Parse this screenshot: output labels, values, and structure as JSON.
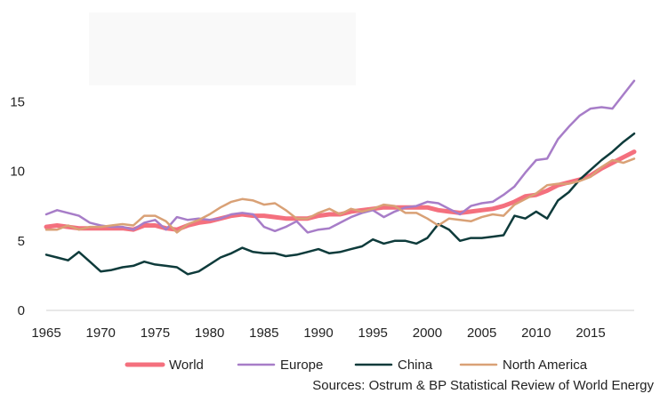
{
  "chart_data": {
    "type": "line",
    "title": "",
    "xlabel": "",
    "ylabel": "",
    "xlim": [
      1965,
      2019
    ],
    "ylim": [
      0,
      20
    ],
    "x_ticks": [
      1965,
      1970,
      1975,
      1980,
      1985,
      1990,
      1995,
      2000,
      2005,
      2010,
      2015
    ],
    "y_ticks": [
      0,
      5,
      10,
      15
    ],
    "grid": false,
    "legend_position": "bottom",
    "x": [
      1965,
      1966,
      1967,
      1968,
      1969,
      1970,
      1971,
      1972,
      1973,
      1974,
      1975,
      1976,
      1977,
      1978,
      1979,
      1980,
      1981,
      1982,
      1983,
      1984,
      1985,
      1986,
      1987,
      1988,
      1989,
      1990,
      1991,
      1992,
      1993,
      1994,
      1995,
      1996,
      1997,
      1998,
      1999,
      2000,
      2001,
      2002,
      2003,
      2004,
      2005,
      2006,
      2007,
      2008,
      2009,
      2010,
      2011,
      2012,
      2013,
      2014,
      2015,
      2016,
      2017,
      2018,
      2019
    ],
    "series": [
      {
        "name": "World",
        "color": "#f4707e",
        "width": 5,
        "values": [
          6.0,
          6.1,
          6.0,
          5.9,
          5.9,
          5.9,
          5.9,
          5.9,
          5.8,
          6.1,
          6.1,
          5.9,
          5.8,
          6.1,
          6.3,
          6.4,
          6.6,
          6.8,
          6.9,
          6.8,
          6.8,
          6.7,
          6.6,
          6.6,
          6.6,
          6.8,
          6.9,
          6.9,
          7.1,
          7.2,
          7.3,
          7.4,
          7.4,
          7.4,
          7.4,
          7.4,
          7.2,
          7.1,
          7.0,
          7.1,
          7.2,
          7.3,
          7.5,
          7.8,
          8.2,
          8.3,
          8.6,
          9.0,
          9.2,
          9.4,
          9.7,
          10.2,
          10.6,
          11.0,
          11.4
        ]
      },
      {
        "name": "Europe",
        "color": "#a77dc8",
        "width": 2.5,
        "values": [
          6.9,
          7.2,
          7.0,
          6.8,
          6.3,
          6.1,
          6.0,
          6.0,
          5.8,
          6.3,
          6.5,
          5.8,
          6.7,
          6.5,
          6.6,
          6.5,
          6.6,
          6.9,
          7.0,
          6.9,
          6.0,
          5.7,
          6.0,
          6.4,
          5.6,
          5.8,
          5.9,
          6.3,
          6.7,
          7.0,
          7.2,
          6.7,
          7.1,
          7.4,
          7.5,
          7.8,
          7.7,
          7.3,
          6.9,
          7.5,
          7.7,
          7.8,
          8.3,
          8.9,
          9.9,
          10.8,
          10.9,
          12.3,
          13.2,
          14.0,
          14.5,
          14.6,
          14.5,
          15.5,
          16.5
        ]
      },
      {
        "name": "China",
        "color": "#0e3b3b",
        "width": 2.5,
        "values": [
          4.0,
          3.8,
          3.6,
          4.2,
          3.5,
          2.8,
          2.9,
          3.1,
          3.2,
          3.5,
          3.3,
          3.2,
          3.1,
          2.6,
          2.8,
          3.3,
          3.8,
          4.1,
          4.5,
          4.2,
          4.1,
          4.1,
          3.9,
          4.0,
          4.2,
          4.4,
          4.1,
          4.2,
          4.4,
          4.6,
          5.1,
          4.8,
          5.0,
          5.0,
          4.8,
          5.2,
          6.2,
          5.8,
          5.0,
          5.2,
          5.2,
          5.3,
          5.4,
          6.8,
          6.6,
          7.1,
          6.6,
          7.9,
          8.5,
          9.4,
          10.1,
          10.8,
          11.4,
          12.1,
          12.7
        ]
      },
      {
        "name": "North America",
        "color": "#d9a176",
        "width": 2.5,
        "values": [
          5.8,
          5.8,
          6.1,
          5.8,
          6.0,
          6.0,
          6.1,
          6.2,
          6.1,
          6.8,
          6.8,
          6.4,
          5.6,
          6.2,
          6.5,
          6.9,
          7.4,
          7.8,
          8.0,
          7.9,
          7.6,
          7.7,
          7.2,
          6.6,
          6.6,
          7.0,
          7.3,
          6.9,
          7.3,
          7.1,
          7.3,
          7.6,
          7.5,
          7.0,
          7.0,
          6.6,
          6.1,
          6.6,
          6.5,
          6.4,
          6.7,
          6.9,
          6.8,
          7.6,
          8.0,
          8.4,
          9.0,
          9.1,
          9.1,
          9.3,
          9.6,
          10.3,
          10.8,
          10.6,
          10.9
        ]
      }
    ]
  },
  "legend": {
    "items": [
      "World",
      "Europe",
      "China",
      "North America"
    ]
  },
  "source": "Sources: Ostrum & BP Statistical Review of World Energy"
}
